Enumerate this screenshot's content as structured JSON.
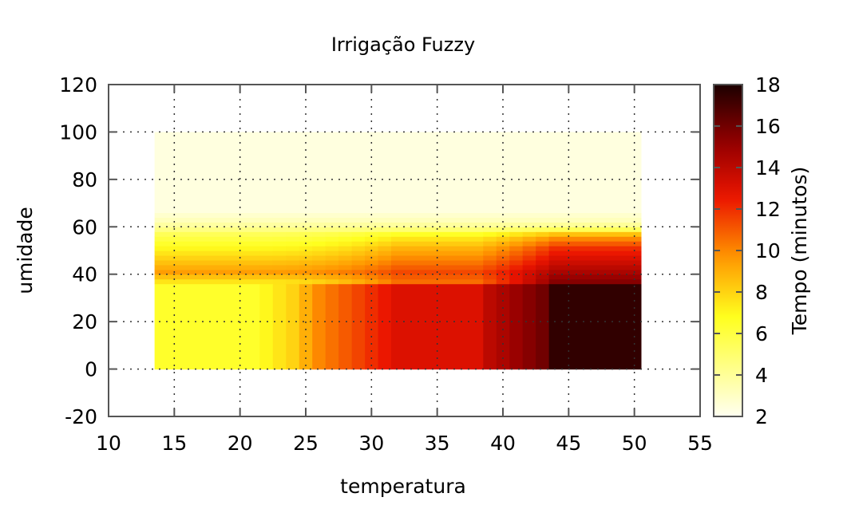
{
  "chart_data": {
    "type": "heatmap",
    "title": "Irrigação Fuzzy",
    "xlabel": "temperatura",
    "ylabel": "umidade",
    "colorbar_label": "Tempo (minutos)",
    "xlim": [
      10,
      55
    ],
    "ylim": [
      -20,
      120
    ],
    "color_range": [
      2,
      18
    ],
    "x_ticks": [
      "10",
      "15",
      "20",
      "25",
      "30",
      "35",
      "40",
      "45",
      "50",
      "55"
    ],
    "y_ticks": [
      "-20",
      "0",
      "20",
      "40",
      "60",
      "80",
      "100",
      "120"
    ],
    "color_ticks": [
      "2",
      "4",
      "6",
      "8",
      "10",
      "12",
      "14",
      "16",
      "18"
    ],
    "grid": true,
    "colormap": "hot (inverted)",
    "x_edges": [
      13.5,
      21.5,
      22.5,
      23.5,
      24.5,
      25.5,
      26.5,
      27.5,
      28.5,
      29.5,
      30.5,
      31.5,
      38.5,
      39.5,
      40.5,
      41.5,
      42.5,
      43.5,
      50.5
    ],
    "y_edges": [
      0,
      36,
      38,
      40,
      42,
      44,
      46,
      48,
      50,
      52,
      54,
      56,
      58,
      60,
      62,
      64,
      66,
      100
    ],
    "z_low_humidity": [
      6.5,
      7.0,
      7.5,
      8.0,
      9.0,
      10.0,
      10.5,
      11.0,
      11.5,
      12.0,
      12.5,
      13.0,
      14.0,
      14.5,
      15.0,
      15.5,
      16.0,
      17.5
    ],
    "z_profile_y": [
      38,
      40,
      42,
      44,
      46,
      48,
      50,
      52,
      54,
      56,
      58,
      60,
      62,
      64,
      66,
      100
    ],
    "z_profile_left": [
      7.5,
      8.5,
      9.5,
      9.0,
      8.5,
      8.0,
      7.5,
      7.0,
      6.5,
      6.0,
      5.5,
      4.5,
      3.8,
      3.2,
      2.8,
      2.4
    ],
    "z_profile_right": [
      15.5,
      15.0,
      14.5,
      14.0,
      13.5,
      13.0,
      12.5,
      12.0,
      11.0,
      10.0,
      8.5,
      5.5,
      4.0,
      3.2,
      2.8,
      2.4
    ]
  }
}
